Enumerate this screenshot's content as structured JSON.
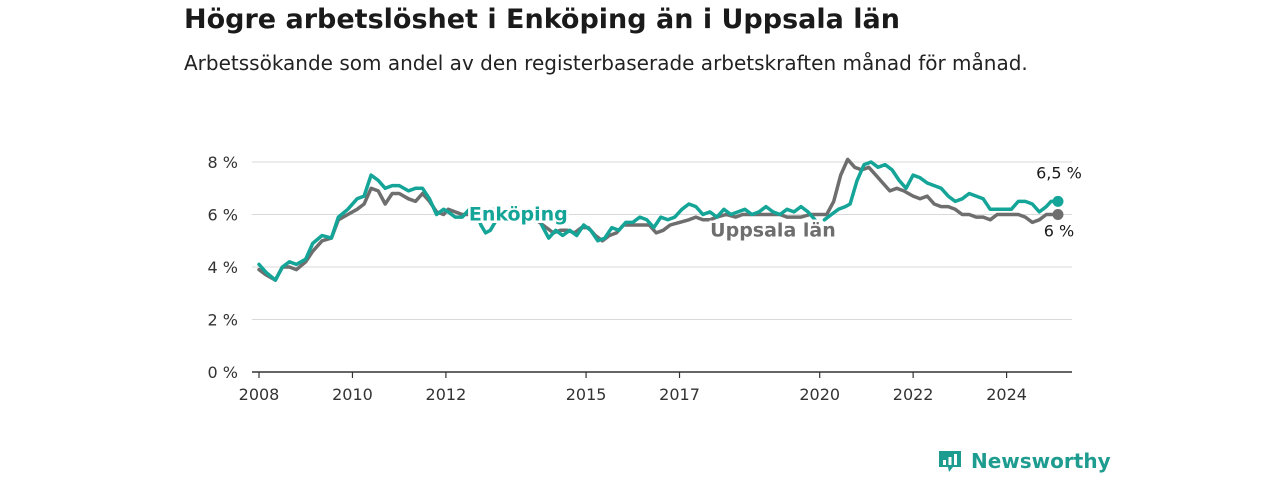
{
  "title": "Högre arbetslöshet i Enköping än i Uppsala län",
  "subtitle": "Arbetssökande som andel av den registerbaserade arbetskraften månad för månad.",
  "brand": {
    "name": "Newsworthy",
    "icon": "newsworthy-logo-icon",
    "color": "#1e9c8f"
  },
  "chart_data": {
    "type": "line",
    "title": "Högre arbetslöshet i Enköping än i Uppsala län",
    "subtitle": "Arbetssökande som andel av den registerbaserade arbetskraften månad för månad.",
    "xlabel": "",
    "ylabel": "",
    "xlim": [
      2007.85,
      2025.4
    ],
    "ylim": [
      0,
      8
    ],
    "x_ticks": [
      2008,
      2010,
      2012,
      2015,
      2017,
      2020,
      2022,
      2024
    ],
    "x_tick_labels": [
      "2008",
      "2010",
      "2012",
      "2015",
      "2017",
      "2020",
      "2022",
      "2024"
    ],
    "y_ticks": [
      0,
      2,
      4,
      6,
      8
    ],
    "y_tick_labels": [
      "0 %",
      "2 %",
      "4 %",
      "6 %",
      "8 %"
    ],
    "grid": "horizontal",
    "legend": "inline labels",
    "series": [
      {
        "name": "Uppsala län",
        "color": "#6e6e6e",
        "end_label": "6 %",
        "points": [
          [
            2008.0,
            3.9
          ],
          [
            2008.15,
            3.7
          ],
          [
            2008.35,
            3.5
          ],
          [
            2008.5,
            4.0
          ],
          [
            2008.65,
            4.0
          ],
          [
            2008.8,
            3.9
          ],
          [
            2009.0,
            4.2
          ],
          [
            2009.15,
            4.6
          ],
          [
            2009.35,
            5.0
          ],
          [
            2009.55,
            5.1
          ],
          [
            2009.7,
            5.8
          ],
          [
            2009.9,
            6.0
          ],
          [
            2010.1,
            6.2
          ],
          [
            2010.25,
            6.4
          ],
          [
            2010.4,
            7.0
          ],
          [
            2010.55,
            6.9
          ],
          [
            2010.7,
            6.4
          ],
          [
            2010.85,
            6.8
          ],
          [
            2011.0,
            6.8
          ],
          [
            2011.2,
            6.6
          ],
          [
            2011.35,
            6.5
          ],
          [
            2011.5,
            6.8
          ],
          [
            2011.65,
            6.5
          ],
          [
            2011.8,
            6.1
          ],
          [
            2011.95,
            6.0
          ],
          [
            2012.05,
            6.2
          ],
          [
            2012.2,
            6.1
          ],
          [
            2012.35,
            6.0
          ],
          [
            2012.5,
            6.0
          ],
          [
            2012.7,
            6.1
          ],
          [
            2012.8,
            5.8
          ],
          [
            2012.9,
            5.9
          ],
          [
            2013.0,
            6.2
          ],
          null,
          [
            2014.0,
            5.7
          ],
          [
            2014.15,
            5.5
          ],
          [
            2014.3,
            5.3
          ],
          [
            2014.45,
            5.4
          ],
          [
            2014.6,
            5.4
          ],
          [
            2014.75,
            5.3
          ],
          [
            2014.9,
            5.5
          ],
          [
            2015.05,
            5.5
          ],
          [
            2015.2,
            5.2
          ],
          [
            2015.35,
            5.0
          ],
          [
            2015.5,
            5.2
          ],
          [
            2015.65,
            5.3
          ],
          [
            2015.8,
            5.6
          ],
          [
            2016.0,
            5.6
          ],
          [
            2016.2,
            5.6
          ],
          [
            2016.35,
            5.6
          ],
          [
            2016.5,
            5.3
          ],
          [
            2016.65,
            5.4
          ],
          [
            2016.8,
            5.6
          ],
          [
            2017.0,
            5.7
          ],
          [
            2017.2,
            5.8
          ],
          [
            2017.35,
            5.9
          ],
          [
            2017.5,
            5.8
          ],
          [
            2017.65,
            5.8
          ],
          [
            2017.8,
            5.9
          ],
          [
            2018.0,
            6.0
          ],
          [
            2018.2,
            5.9
          ],
          [
            2018.35,
            6.0
          ],
          [
            2018.5,
            6.0
          ],
          [
            2018.7,
            6.0
          ],
          [
            2018.85,
            6.0
          ],
          [
            2019.0,
            6.0
          ],
          [
            2019.15,
            6.0
          ],
          [
            2019.3,
            5.9
          ],
          [
            2019.45,
            5.9
          ],
          [
            2019.6,
            5.9
          ],
          [
            2019.8,
            6.0
          ],
          [
            2020.0,
            6.0
          ],
          [
            2020.15,
            6.0
          ],
          [
            2020.3,
            6.5
          ],
          [
            2020.45,
            7.5
          ],
          [
            2020.6,
            8.1
          ],
          [
            2020.75,
            7.8
          ],
          [
            2020.9,
            7.7
          ],
          [
            2021.05,
            7.8
          ],
          [
            2021.2,
            7.5
          ],
          [
            2021.35,
            7.2
          ],
          [
            2021.5,
            6.9
          ],
          [
            2021.65,
            7.0
          ],
          [
            2021.8,
            6.9
          ],
          [
            2022.0,
            6.7
          ],
          [
            2022.15,
            6.6
          ],
          [
            2022.3,
            6.7
          ],
          [
            2022.45,
            6.4
          ],
          [
            2022.6,
            6.3
          ],
          [
            2022.75,
            6.3
          ],
          [
            2022.9,
            6.2
          ],
          [
            2023.05,
            6.0
          ],
          [
            2023.2,
            6.0
          ],
          [
            2023.35,
            5.9
          ],
          [
            2023.5,
            5.9
          ],
          [
            2023.65,
            5.8
          ],
          [
            2023.8,
            6.0
          ],
          [
            2023.95,
            6.0
          ],
          [
            2024.1,
            6.0
          ],
          [
            2024.25,
            6.0
          ],
          [
            2024.4,
            5.9
          ],
          [
            2024.55,
            5.7
          ],
          [
            2024.7,
            5.8
          ],
          [
            2024.85,
            6.0
          ],
          [
            2025.0,
            6.0
          ],
          [
            2025.1,
            6.0
          ]
        ]
      },
      {
        "name": "Enköping",
        "color": "#14a598",
        "end_label": "6,5 %",
        "points": [
          [
            2008.0,
            4.1
          ],
          [
            2008.15,
            3.8
          ],
          [
            2008.35,
            3.5
          ],
          [
            2008.5,
            4.0
          ],
          [
            2008.65,
            4.2
          ],
          [
            2008.8,
            4.1
          ],
          [
            2009.0,
            4.3
          ],
          [
            2009.15,
            4.9
          ],
          [
            2009.35,
            5.2
          ],
          [
            2009.55,
            5.1
          ],
          [
            2009.7,
            5.9
          ],
          [
            2009.9,
            6.2
          ],
          [
            2010.1,
            6.6
          ],
          [
            2010.25,
            6.7
          ],
          [
            2010.4,
            7.5
          ],
          [
            2010.55,
            7.3
          ],
          [
            2010.7,
            7.0
          ],
          [
            2010.85,
            7.1
          ],
          [
            2011.0,
            7.1
          ],
          [
            2011.2,
            6.9
          ],
          [
            2011.35,
            7.0
          ],
          [
            2011.5,
            7.0
          ],
          [
            2011.65,
            6.6
          ],
          [
            2011.8,
            6.0
          ],
          [
            2011.95,
            6.2
          ],
          [
            2012.05,
            6.1
          ],
          [
            2012.2,
            5.9
          ],
          [
            2012.35,
            5.9
          ],
          [
            2012.5,
            6.2
          ],
          [
            2012.65,
            6.1
          ],
          [
            2012.75,
            5.6
          ],
          [
            2012.85,
            5.3
          ],
          [
            2012.95,
            5.4
          ],
          [
            2013.05,
            5.7
          ],
          null,
          [
            2014.05,
            5.6
          ],
          [
            2014.2,
            5.1
          ],
          [
            2014.35,
            5.4
          ],
          [
            2014.5,
            5.2
          ],
          [
            2014.65,
            5.4
          ],
          [
            2014.8,
            5.2
          ],
          [
            2014.95,
            5.6
          ],
          [
            2015.1,
            5.4
          ],
          [
            2015.25,
            5.0
          ],
          [
            2015.4,
            5.1
          ],
          [
            2015.55,
            5.5
          ],
          [
            2015.7,
            5.4
          ],
          [
            2015.85,
            5.7
          ],
          [
            2016.0,
            5.7
          ],
          [
            2016.15,
            5.9
          ],
          [
            2016.3,
            5.8
          ],
          [
            2016.45,
            5.5
          ],
          [
            2016.6,
            5.9
          ],
          [
            2016.75,
            5.8
          ],
          [
            2016.9,
            5.9
          ],
          [
            2017.05,
            6.2
          ],
          [
            2017.2,
            6.4
          ],
          [
            2017.35,
            6.3
          ],
          [
            2017.5,
            6.0
          ],
          [
            2017.65,
            6.1
          ],
          [
            2017.8,
            5.9
          ],
          [
            2017.95,
            6.2
          ],
          [
            2018.1,
            6.0
          ],
          [
            2018.25,
            6.1
          ],
          [
            2018.4,
            6.2
          ],
          [
            2018.55,
            6.0
          ],
          [
            2018.7,
            6.1
          ],
          [
            2018.85,
            6.3
          ],
          [
            2019.0,
            6.1
          ],
          [
            2019.15,
            6.0
          ],
          [
            2019.3,
            6.2
          ],
          [
            2019.45,
            6.1
          ],
          [
            2019.6,
            6.3
          ],
          [
            2019.75,
            6.1
          ],
          [
            2019.9,
            5.8
          ],
          null,
          [
            2020.1,
            5.8
          ],
          [
            2020.25,
            6.0
          ],
          [
            2020.4,
            6.2
          ],
          [
            2020.55,
            6.3
          ],
          [
            2020.65,
            6.4
          ],
          [
            2020.8,
            7.3
          ],
          [
            2020.95,
            7.9
          ],
          [
            2021.1,
            8.0
          ],
          [
            2021.25,
            7.8
          ],
          [
            2021.4,
            7.9
          ],
          [
            2021.55,
            7.7
          ],
          [
            2021.7,
            7.3
          ],
          [
            2021.85,
            7.0
          ],
          [
            2022.0,
            7.5
          ],
          [
            2022.15,
            7.4
          ],
          [
            2022.3,
            7.2
          ],
          [
            2022.45,
            7.1
          ],
          [
            2022.6,
            7.0
          ],
          [
            2022.75,
            6.7
          ],
          [
            2022.9,
            6.5
          ],
          [
            2023.05,
            6.6
          ],
          [
            2023.2,
            6.8
          ],
          [
            2023.35,
            6.7
          ],
          [
            2023.5,
            6.6
          ],
          [
            2023.65,
            6.2
          ],
          [
            2023.8,
            6.2
          ],
          [
            2023.95,
            6.2
          ],
          [
            2024.1,
            6.2
          ],
          [
            2024.25,
            6.5
          ],
          [
            2024.4,
            6.5
          ],
          [
            2024.55,
            6.4
          ],
          [
            2024.7,
            6.1
          ],
          [
            2024.85,
            6.3
          ],
          [
            2024.95,
            6.5
          ],
          [
            2025.1,
            6.5
          ]
        ]
      }
    ],
    "inline_labels": [
      {
        "series": "Enköping",
        "text": "Enköping",
        "x": 2013.55,
        "y": 6.0
      },
      {
        "series": "Uppsala län",
        "text": "Uppsala län",
        "x": 2019.0,
        "y": 5.4
      }
    ]
  }
}
